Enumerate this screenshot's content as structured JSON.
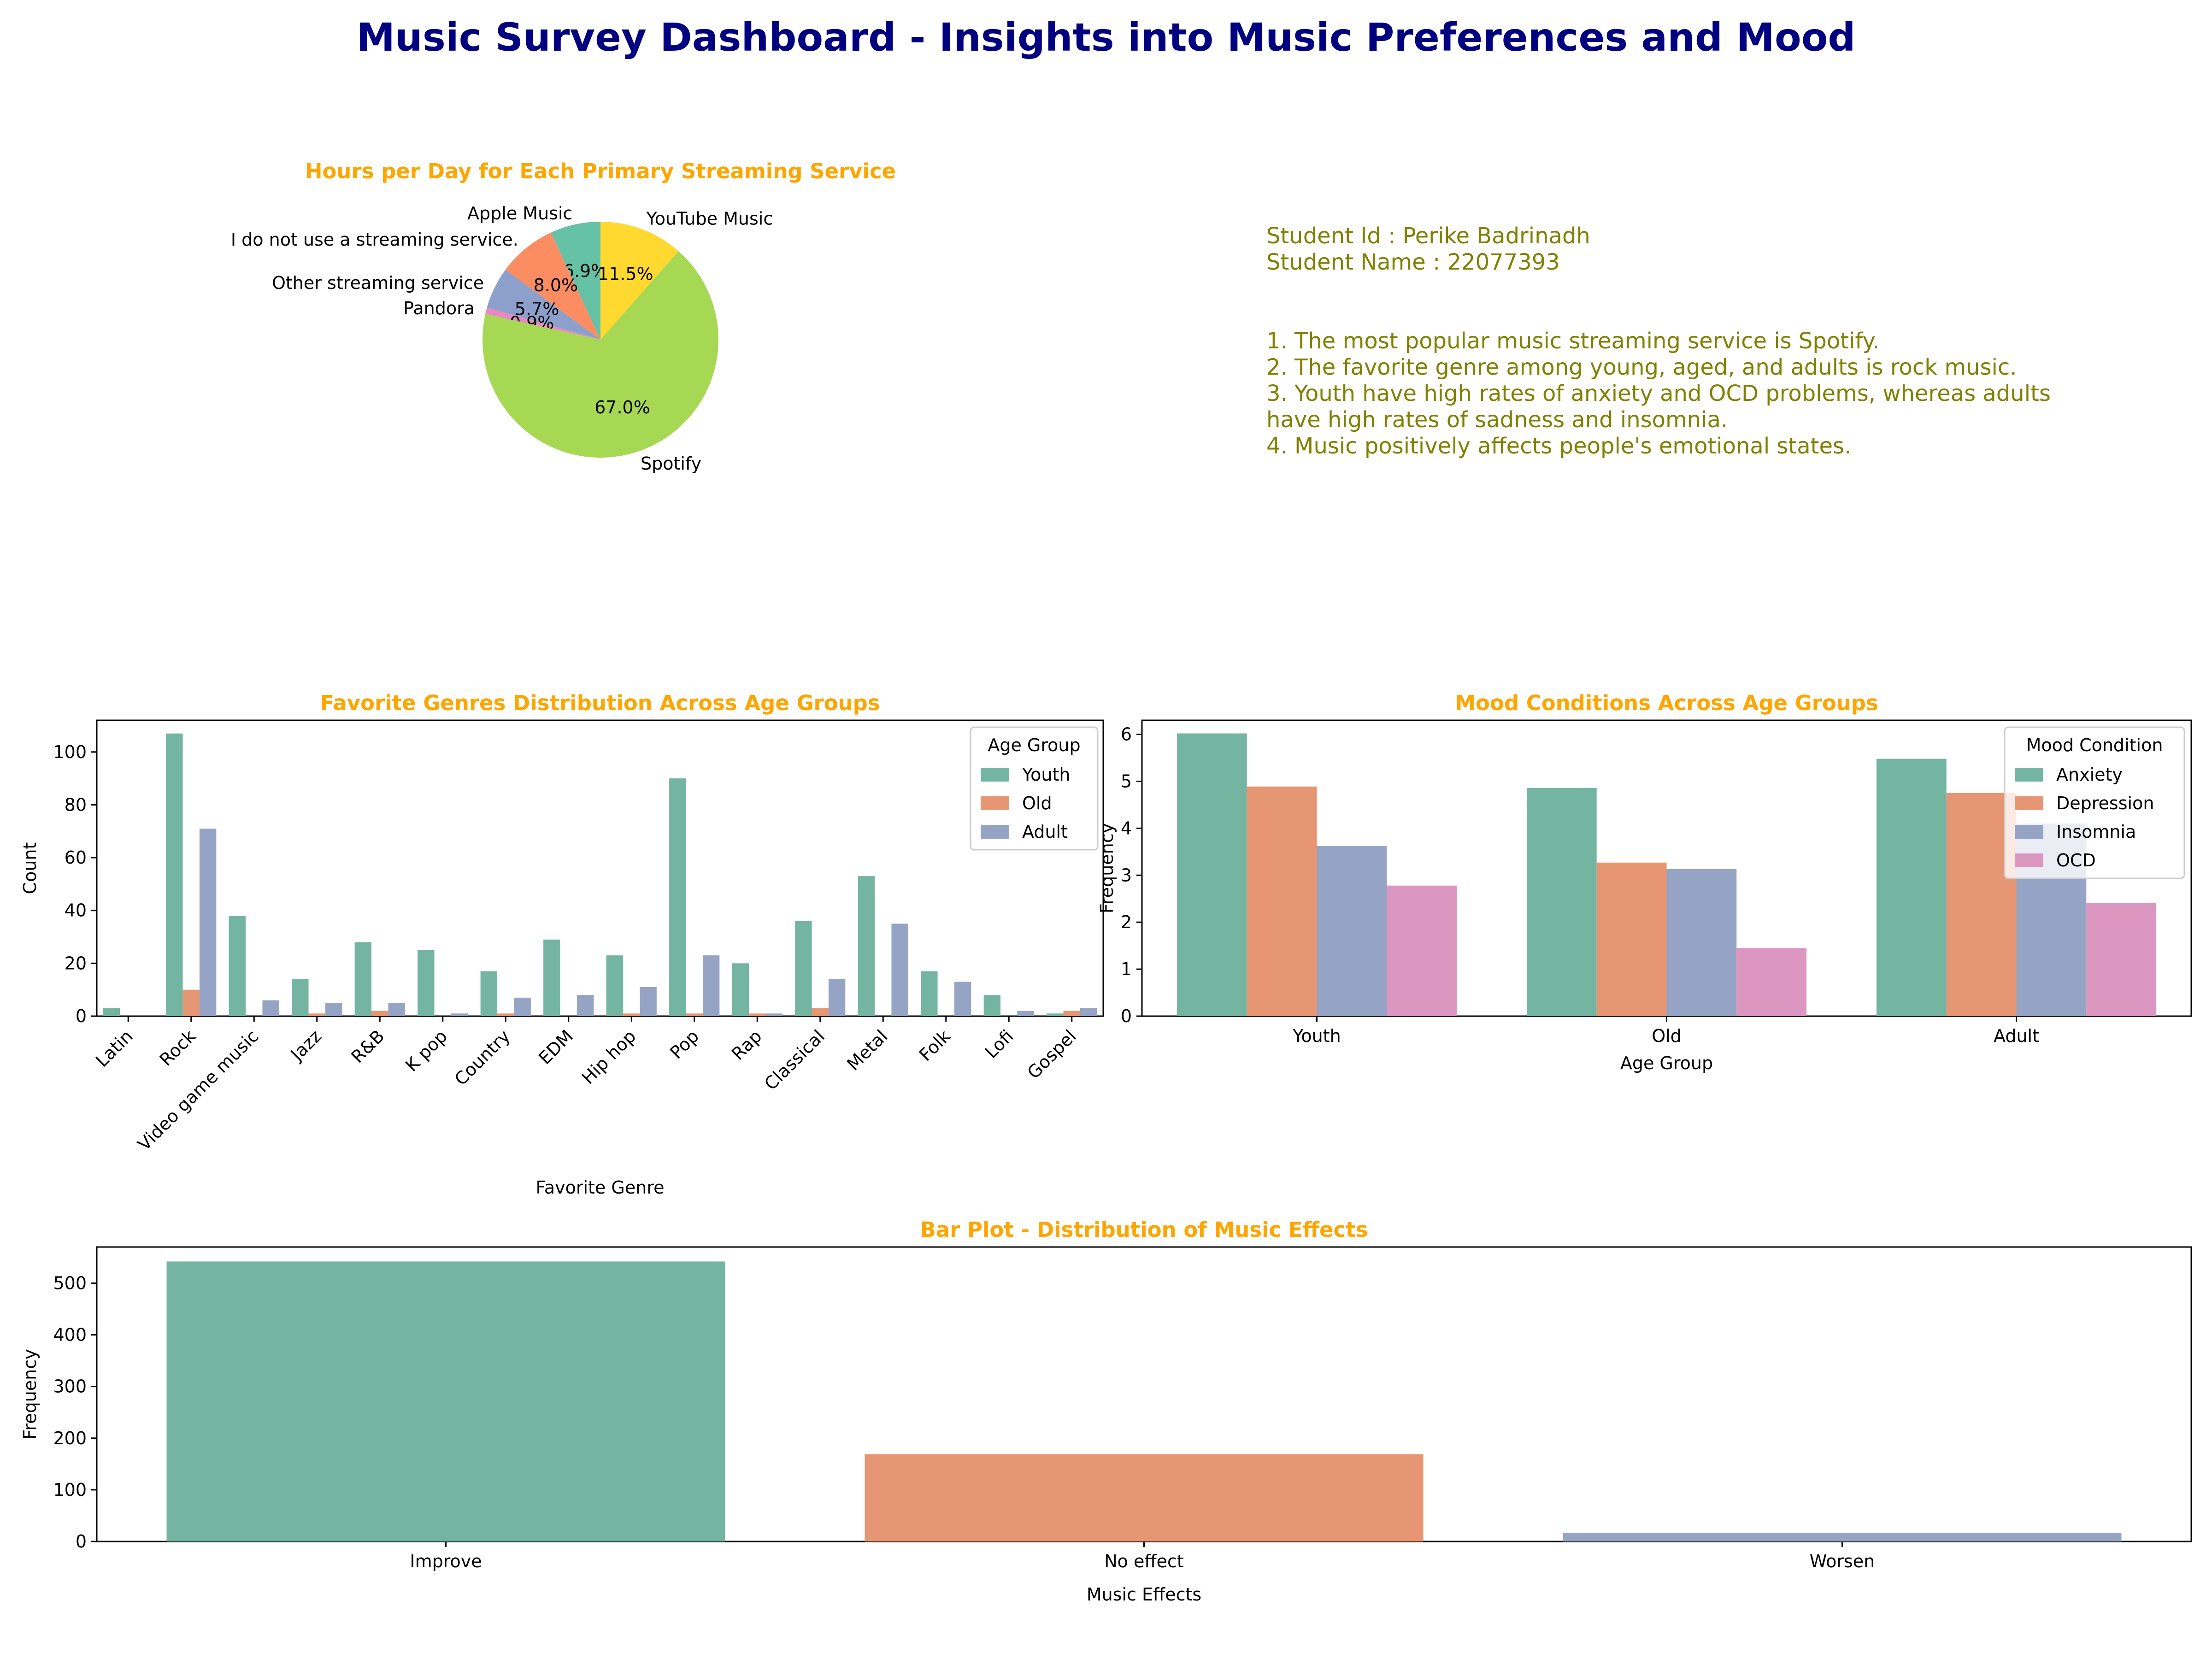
{
  "page": {
    "title": "Music Survey Dashboard - Insights into Music Preferences and Mood",
    "title_color": "#000080",
    "subtitle_color": "#FFA500"
  },
  "info": {
    "lines": [
      "Student Id : Perike Badrinadh",
      "Student Name : 22077393",
      "",
      "",
      "1. The most popular music streaming service is Spotify.",
      "2. The favorite genre among young, aged, and adults is rock music.",
      "3. Youth have high rates of anxiety and OCD problems, whereas adults",
      "have high rates of sadness and insomnia.",
      "4. Music positively affects people's emotional states."
    ],
    "color": "#808000"
  },
  "palette": [
    "#66c2a5",
    "#fc8d62",
    "#8da0cb",
    "#e78ac3",
    "#a6d854",
    "#ffd92f"
  ],
  "chart_data": [
    {
      "id": "pie",
      "type": "pie",
      "title": "Hours per Day for Each Primary Streaming Service",
      "labels": [
        "Apple Music",
        "I do not use a streaming service.",
        "Other streaming service",
        "Pandora",
        "Spotify",
        "YouTube Music"
      ],
      "values": [
        6.9,
        8.0,
        5.7,
        0.9,
        67.0,
        11.5
      ],
      "pct_labels": [
        "6.9%",
        "8.0%",
        "5.7%",
        "0.9%",
        "67.0%",
        "11.5%"
      ],
      "start_angle": 90,
      "direction": "counterclockwise"
    },
    {
      "id": "genres",
      "type": "bar",
      "title": "Favorite Genres Distribution Across Age Groups",
      "xlabel": "Favorite Genre",
      "ylabel": "Count",
      "ylim": [
        0,
        112
      ],
      "yticks": [
        0,
        20,
        40,
        60,
        80,
        100
      ],
      "legend_title": "Age Group",
      "legend_position": "top-right",
      "categories": [
        "Latin",
        "Rock",
        "Video game music",
        "Jazz",
        "R&B",
        "K pop",
        "Country",
        "EDM",
        "Hip hop",
        "Pop",
        "Rap",
        "Classical",
        "Metal",
        "Folk",
        "Lofi",
        "Gospel"
      ],
      "series": [
        {
          "name": "Youth",
          "values": [
            3,
            107,
            38,
            14,
            28,
            25,
            17,
            29,
            23,
            90,
            20,
            36,
            53,
            17,
            8,
            1
          ]
        },
        {
          "name": "Old",
          "values": [
            0,
            10,
            0,
            1,
            2,
            0,
            1,
            0,
            1,
            1,
            1,
            3,
            0,
            0,
            0,
            2
          ]
        },
        {
          "name": "Adult",
          "values": [
            0,
            71,
            6,
            5,
            5,
            1,
            7,
            8,
            11,
            23,
            1,
            14,
            35,
            13,
            2,
            3
          ]
        }
      ]
    },
    {
      "id": "mood",
      "type": "bar",
      "title": "Mood Conditions Across Age Groups",
      "xlabel": "Age Group",
      "ylabel": "Frequency",
      "ylim": [
        0,
        6.3
      ],
      "yticks": [
        0,
        1,
        2,
        3,
        4,
        5,
        6
      ],
      "legend_title": "Mood Condition",
      "legend_position": "top-right",
      "categories": [
        "Youth",
        "Old",
        "Adult"
      ],
      "series": [
        {
          "name": "Anxiety",
          "values": [
            6.02,
            4.86,
            5.48
          ]
        },
        {
          "name": "Depression",
          "values": [
            4.89,
            3.27,
            4.75
          ]
        },
        {
          "name": "Insomnia",
          "values": [
            3.62,
            3.13,
            4.1
          ]
        },
        {
          "name": "OCD",
          "values": [
            2.78,
            1.45,
            2.41
          ]
        }
      ]
    },
    {
      "id": "effects",
      "type": "bar",
      "title": "Bar Plot - Distribution of Music Effects",
      "xlabel": "Music Effects",
      "ylabel": "Frequency",
      "ylim": [
        0,
        570
      ],
      "yticks": [
        0,
        100,
        200,
        300,
        400,
        500
      ],
      "categories": [
        "Improve",
        "No effect",
        "Worsen"
      ],
      "values": [
        542,
        169,
        17
      ]
    }
  ]
}
